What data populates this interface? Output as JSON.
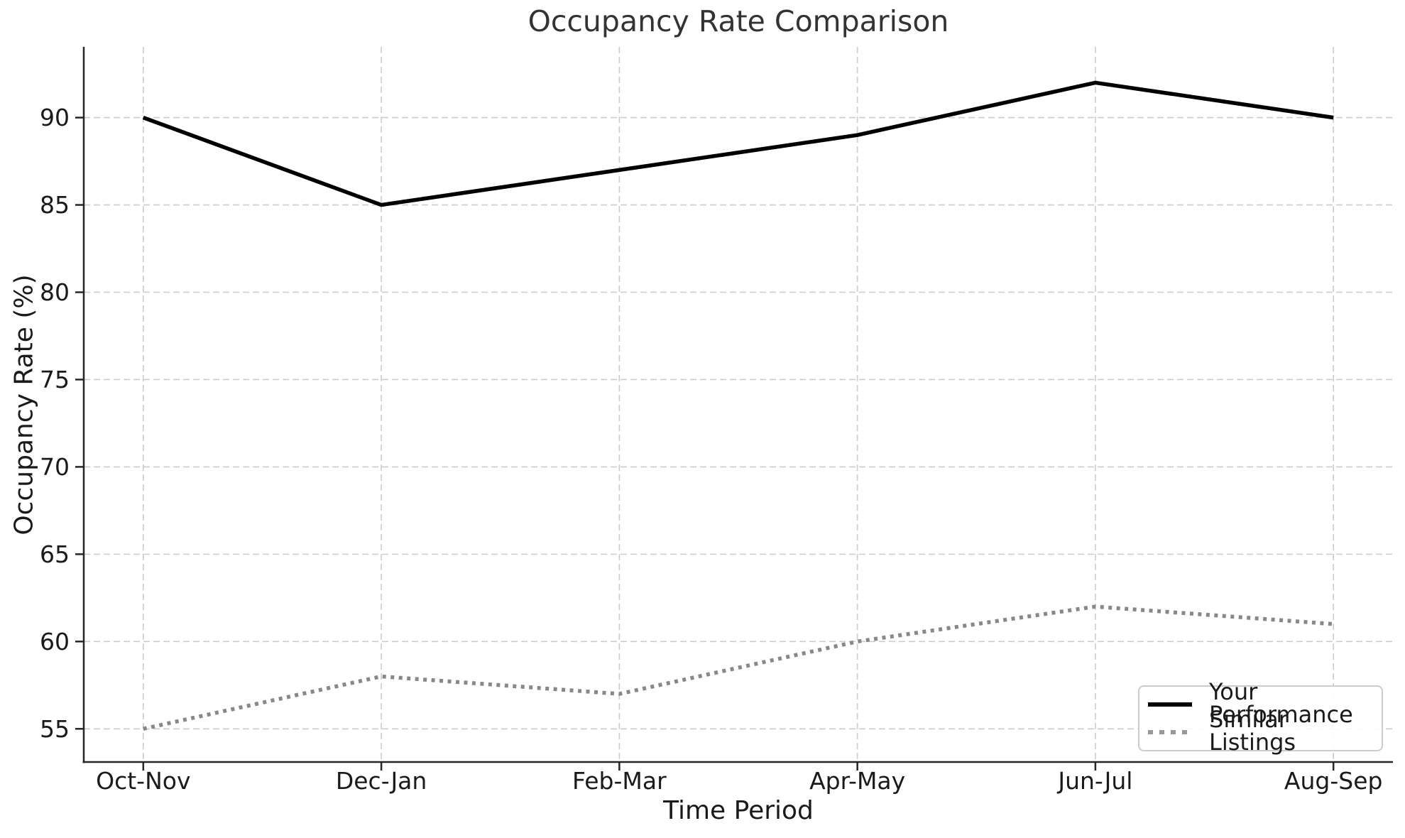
{
  "chart_data": {
    "type": "line",
    "title": "Occupancy Rate Comparison",
    "xlabel": "Time Period",
    "ylabel": "Occupancy Rate (%)",
    "categories": [
      "Oct-Nov",
      "Dec-Jan",
      "Feb-Mar",
      "Apr-May",
      "Jun-Jul",
      "Aug-Sep"
    ],
    "series": [
      {
        "name": "Your Performance",
        "values": [
          90,
          85,
          87,
          89,
          92,
          90
        ],
        "style": "solid",
        "color": "#000000",
        "line_width": 5.5
      },
      {
        "name": "Similar Listings",
        "values": [
          55,
          58,
          57,
          60,
          62,
          61
        ],
        "style": "dotted",
        "color": "#888888",
        "line_width": 5.5
      }
    ],
    "yticks": [
      55,
      60,
      65,
      70,
      75,
      80,
      85,
      90
    ],
    "ylim": [
      53.1,
      94.05
    ],
    "xlim": [
      -0.25,
      5.25
    ],
    "grid": "dashed",
    "legend_position": "lower right",
    "colors": {
      "grid": "#cccccc",
      "spine": "#262626",
      "tick_text": "#1a1a1a",
      "title_text": "#333333",
      "background": "#ffffff"
    }
  }
}
